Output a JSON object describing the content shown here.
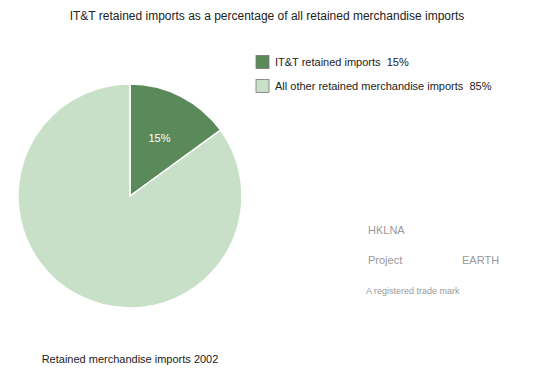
{
  "chart_data": {
    "type": "pie",
    "title": "IT&T retained imports as a percentage of all retained merchandise imports",
    "subtitle": "Retained merchandise imports 2002",
    "categories": [
      "IT&T retained imports  15%",
      "All other retained merchandise imports  85%"
    ],
    "values": [
      15,
      85
    ],
    "value_labels": [
      "15%",
      null
    ],
    "colors": [
      "#5a8a5a",
      "#c8dfc8"
    ],
    "legend": "right",
    "annotations": [
      "HKLNA",
      "Project",
      "EARTH",
      "A registered trade mark"
    ]
  }
}
